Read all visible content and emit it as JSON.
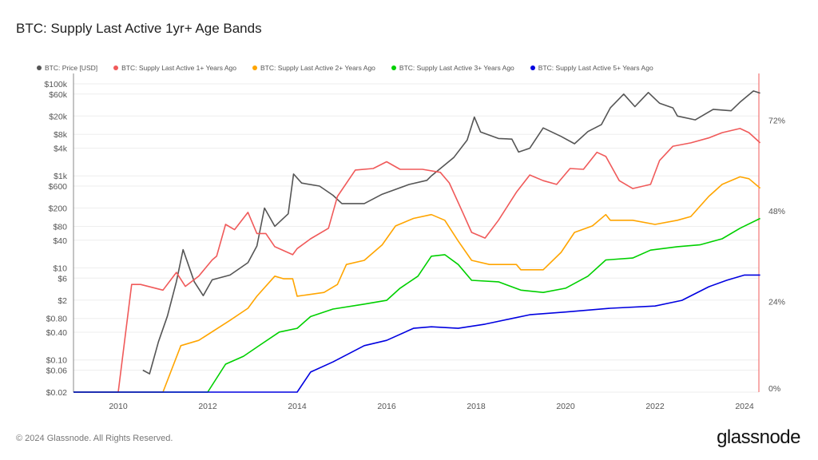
{
  "header": {
    "title": "BTC: Supply Last Active 1yr+ Age Bands"
  },
  "footer": {
    "copyright": "© 2024 Glassnode. All Rights Reserved.",
    "logo": "glassnode"
  },
  "chart_data": {
    "type": "line",
    "title": "BTC: Supply Last Active 1yr+ Age Bands",
    "legend_position": "top",
    "grid": true,
    "xlim": [
      2009,
      2024.35
    ],
    "x_ticks": [
      "2010",
      "2012",
      "2014",
      "2016",
      "2018",
      "2020",
      "2022",
      "2024"
    ],
    "y_left": {
      "scale": "log",
      "range": [
        0.02,
        100000
      ],
      "ticks": [
        {
          "v": 100000,
          "label": "$100k"
        },
        {
          "v": 60000,
          "label": "$60k"
        },
        {
          "v": 20000,
          "label": "$20k"
        },
        {
          "v": 8000,
          "label": "$8k"
        },
        {
          "v": 4000,
          "label": "$4k"
        },
        {
          "v": 1000,
          "label": "$1k"
        },
        {
          "v": 600,
          "label": "$600"
        },
        {
          "v": 200,
          "label": "$200"
        },
        {
          "v": 80,
          "label": "$80"
        },
        {
          "v": 40,
          "label": "$40"
        },
        {
          "v": 10,
          "label": "$10"
        },
        {
          "v": 6,
          "label": "$6"
        },
        {
          "v": 2,
          "label": "$2"
        },
        {
          "v": 0.8,
          "label": "$0.80"
        },
        {
          "v": 0.4,
          "label": "$0.40"
        },
        {
          "v": 0.1,
          "label": "$0.10"
        },
        {
          "v": 0.06,
          "label": "$0.06"
        },
        {
          "v": 0.02,
          "label": "$0.02"
        }
      ]
    },
    "y_right": {
      "scale": "linear",
      "unit": "%",
      "range": [
        0,
        84
      ],
      "ticks": [
        {
          "v": 0,
          "label": "0%"
        },
        {
          "v": 24,
          "label": "24%"
        },
        {
          "v": 48,
          "label": "48%"
        },
        {
          "v": 72,
          "label": "72%"
        }
      ]
    },
    "series": [
      {
        "name": "BTC: Price [USD]",
        "axis": "left",
        "color": "#555555",
        "points": [
          [
            2010.55,
            0.06
          ],
          [
            2010.7,
            0.05
          ],
          [
            2010.9,
            0.25
          ],
          [
            2011.1,
            0.9
          ],
          [
            2011.3,
            5
          ],
          [
            2011.45,
            25
          ],
          [
            2011.7,
            5
          ],
          [
            2011.9,
            2.5
          ],
          [
            2012.1,
            5.5
          ],
          [
            2012.5,
            7
          ],
          [
            2012.9,
            13
          ],
          [
            2013.1,
            30
          ],
          [
            2013.27,
            200
          ],
          [
            2013.5,
            80
          ],
          [
            2013.8,
            150
          ],
          [
            2013.92,
            1100
          ],
          [
            2014.1,
            700
          ],
          [
            2014.5,
            600
          ],
          [
            2014.8,
            380
          ],
          [
            2015.0,
            250
          ],
          [
            2015.5,
            250
          ],
          [
            2015.9,
            400
          ],
          [
            2016.5,
            650
          ],
          [
            2016.9,
            800
          ],
          [
            2017.0,
            1000
          ],
          [
            2017.5,
            2500
          ],
          [
            2017.8,
            6000
          ],
          [
            2017.96,
            19000
          ],
          [
            2018.1,
            9000
          ],
          [
            2018.5,
            6500
          ],
          [
            2018.8,
            6300
          ],
          [
            2018.95,
            3300
          ],
          [
            2019.2,
            4000
          ],
          [
            2019.5,
            11000
          ],
          [
            2019.9,
            7200
          ],
          [
            2020.2,
            5000
          ],
          [
            2020.5,
            9200
          ],
          [
            2020.8,
            13000
          ],
          [
            2021.0,
            30000
          ],
          [
            2021.3,
            60000
          ],
          [
            2021.55,
            32000
          ],
          [
            2021.85,
            65000
          ],
          [
            2022.1,
            38000
          ],
          [
            2022.4,
            30000
          ],
          [
            2022.5,
            20000
          ],
          [
            2022.9,
            16500
          ],
          [
            2023.3,
            28000
          ],
          [
            2023.7,
            26000
          ],
          [
            2023.9,
            40000
          ],
          [
            2024.2,
            70000
          ],
          [
            2024.35,
            63000
          ]
        ]
      },
      {
        "name": "BTC: Supply Last Active 1+ Years Ago",
        "axis": "right",
        "color": "#f05a5a",
        "points": [
          [
            2009,
            0
          ],
          [
            2010.0,
            0
          ],
          [
            2010.3,
            28.5
          ],
          [
            2010.5,
            28.5
          ],
          [
            2011.0,
            27
          ],
          [
            2011.3,
            31.7
          ],
          [
            2011.5,
            28
          ],
          [
            2011.8,
            30.7
          ],
          [
            2012.1,
            35
          ],
          [
            2012.2,
            36
          ],
          [
            2012.4,
            44.4
          ],
          [
            2012.6,
            43
          ],
          [
            2012.9,
            47.6
          ],
          [
            2013.1,
            42
          ],
          [
            2013.3,
            42
          ],
          [
            2013.5,
            38.5
          ],
          [
            2013.9,
            36.4
          ],
          [
            2014.0,
            38
          ],
          [
            2014.3,
            40.6
          ],
          [
            2014.7,
            43.4
          ],
          [
            2014.9,
            51.8
          ],
          [
            2015.3,
            58.8
          ],
          [
            2015.7,
            59.2
          ],
          [
            2016.0,
            61
          ],
          [
            2016.3,
            59
          ],
          [
            2016.8,
            59
          ],
          [
            2017.2,
            58.2
          ],
          [
            2017.4,
            55.4
          ],
          [
            2017.7,
            47.6
          ],
          [
            2017.9,
            42.3
          ],
          [
            2018.2,
            40.8
          ],
          [
            2018.5,
            45.5
          ],
          [
            2018.9,
            52.9
          ],
          [
            2019.2,
            57.5
          ],
          [
            2019.5,
            56
          ],
          [
            2019.8,
            55
          ],
          [
            2020.1,
            59.2
          ],
          [
            2020.4,
            59
          ],
          [
            2020.7,
            63.5
          ],
          [
            2020.9,
            62.4
          ],
          [
            2021.2,
            56
          ],
          [
            2021.5,
            53.9
          ],
          [
            2021.9,
            55
          ],
          [
            2022.1,
            61.3
          ],
          [
            2022.4,
            65.1
          ],
          [
            2022.8,
            66
          ],
          [
            2023.2,
            67.3
          ],
          [
            2023.5,
            68.7
          ],
          [
            2023.9,
            69.8
          ],
          [
            2024.1,
            68.7
          ],
          [
            2024.35,
            66
          ]
        ]
      },
      {
        "name": "BTC: Supply Last Active 2+ Years Ago",
        "axis": "right",
        "color": "#ffa500",
        "points": [
          [
            2009,
            0
          ],
          [
            2011.0,
            0
          ],
          [
            2011.4,
            12.3
          ],
          [
            2011.8,
            13.7
          ],
          [
            2012.5,
            19
          ],
          [
            2012.9,
            22.2
          ],
          [
            2013.1,
            25.4
          ],
          [
            2013.5,
            30.7
          ],
          [
            2013.7,
            30
          ],
          [
            2013.9,
            30
          ],
          [
            2014.0,
            25.4
          ],
          [
            2014.6,
            26.4
          ],
          [
            2014.9,
            28.5
          ],
          [
            2015.1,
            33.8
          ],
          [
            2015.5,
            34.9
          ],
          [
            2015.9,
            39
          ],
          [
            2016.2,
            44
          ],
          [
            2016.6,
            46
          ],
          [
            2017.0,
            47
          ],
          [
            2017.3,
            45.5
          ],
          [
            2017.6,
            40
          ],
          [
            2017.9,
            34.9
          ],
          [
            2018.3,
            33.8
          ],
          [
            2018.9,
            33.8
          ],
          [
            2019.0,
            32.4
          ],
          [
            2019.5,
            32.4
          ],
          [
            2019.9,
            37
          ],
          [
            2020.2,
            42.3
          ],
          [
            2020.6,
            44
          ],
          [
            2020.9,
            47
          ],
          [
            2021.0,
            45.5
          ],
          [
            2021.5,
            45.5
          ],
          [
            2022.0,
            44.4
          ],
          [
            2022.5,
            45.5
          ],
          [
            2022.8,
            46.5
          ],
          [
            2023.2,
            51.8
          ],
          [
            2023.5,
            55
          ],
          [
            2023.9,
            57
          ],
          [
            2024.1,
            56.5
          ],
          [
            2024.35,
            54
          ]
        ]
      },
      {
        "name": "BTC: Supply Last Active 3+ Years Ago",
        "axis": "right",
        "color": "#00d000",
        "points": [
          [
            2009,
            0
          ],
          [
            2012.0,
            0
          ],
          [
            2012.4,
            7.4
          ],
          [
            2012.8,
            9.5
          ],
          [
            2013.2,
            12.7
          ],
          [
            2013.6,
            15.9
          ],
          [
            2014.0,
            16.9
          ],
          [
            2014.3,
            20
          ],
          [
            2014.8,
            22
          ],
          [
            2015.5,
            23.3
          ],
          [
            2016.0,
            24.3
          ],
          [
            2016.3,
            27.5
          ],
          [
            2016.7,
            30.7
          ],
          [
            2017.0,
            36
          ],
          [
            2017.3,
            36.4
          ],
          [
            2017.6,
            33.8
          ],
          [
            2017.9,
            29.6
          ],
          [
            2018.5,
            29.2
          ],
          [
            2019.0,
            27
          ],
          [
            2019.5,
            26.4
          ],
          [
            2020.0,
            27.5
          ],
          [
            2020.5,
            30.7
          ],
          [
            2020.9,
            35
          ],
          [
            2021.5,
            35.5
          ],
          [
            2021.9,
            37.6
          ],
          [
            2022.5,
            38.5
          ],
          [
            2023.0,
            39
          ],
          [
            2023.5,
            40.6
          ],
          [
            2023.9,
            43.4
          ],
          [
            2024.35,
            46
          ]
        ]
      },
      {
        "name": "BTC: Supply Last Active 5+ Years Ago",
        "axis": "right",
        "color": "#0000e0",
        "points": [
          [
            2009,
            0
          ],
          [
            2014.0,
            0
          ],
          [
            2014.3,
            5.3
          ],
          [
            2014.8,
            8
          ],
          [
            2015.5,
            12.3
          ],
          [
            2016.0,
            13.7
          ],
          [
            2016.6,
            16.9
          ],
          [
            2017.0,
            17.3
          ],
          [
            2017.6,
            16.9
          ],
          [
            2018.2,
            18
          ],
          [
            2018.8,
            19.5
          ],
          [
            2019.2,
            20.5
          ],
          [
            2020.0,
            21.2
          ],
          [
            2021.0,
            22.2
          ],
          [
            2022.0,
            22.8
          ],
          [
            2022.6,
            24.3
          ],
          [
            2023.2,
            27.9
          ],
          [
            2023.6,
            29.6
          ],
          [
            2024.0,
            31
          ],
          [
            2024.35,
            31
          ]
        ]
      }
    ]
  }
}
